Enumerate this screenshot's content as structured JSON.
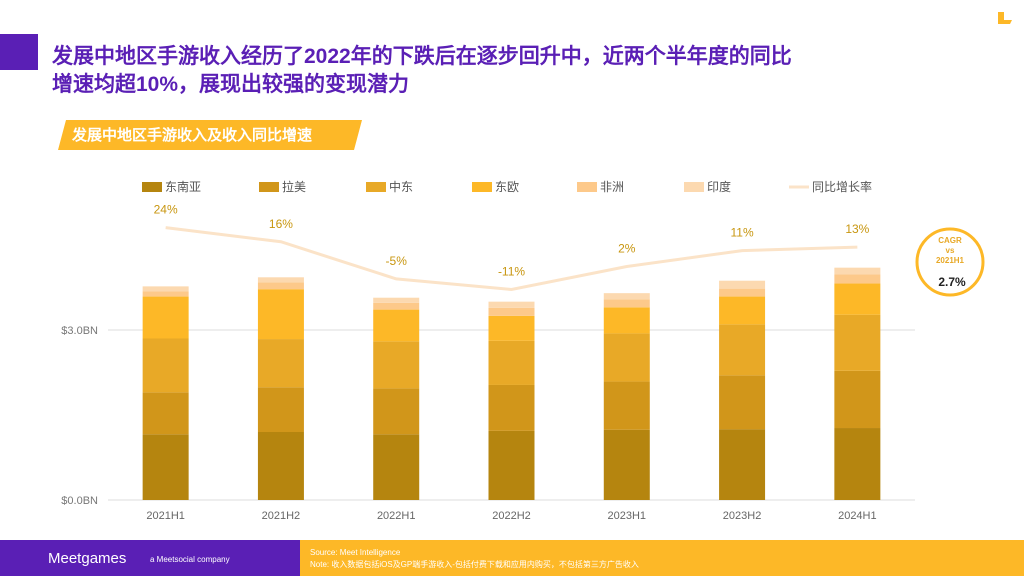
{
  "header": {
    "title": [
      "发展中地区手游收入经历了2022年的下跌后在逐步回升中，近两个半年度的同比",
      "增速均超10%，展现出较强的变现潜力"
    ],
    "subtitle": "发展中地区手游收入及收入同比增速"
  },
  "chart_data": {
    "type": "bar",
    "stacked": true,
    "categories": [
      "2021H1",
      "2021H2",
      "2022H1",
      "2022H2",
      "2023H1",
      "2023H2",
      "2024H1"
    ],
    "series": [
      {
        "name": "东南亚",
        "color": "#b5850f",
        "values": [
          1.16,
          1.2,
          1.16,
          1.22,
          1.24,
          1.25,
          1.27
        ]
      },
      {
        "name": "拉美",
        "color": "#d1961a",
        "values": [
          0.74,
          0.79,
          0.81,
          0.81,
          0.85,
          0.95,
          1.01
        ]
      },
      {
        "name": "中东",
        "color": "#e8a927",
        "values": [
          0.95,
          0.85,
          0.83,
          0.78,
          0.85,
          0.9,
          0.99
        ]
      },
      {
        "name": "东欧",
        "color": "#fdb827",
        "values": [
          0.74,
          0.88,
          0.56,
          0.44,
          0.46,
          0.49,
          0.55
        ]
      },
      {
        "name": "非洲",
        "color": "#fdc98a",
        "values": [
          0.09,
          0.12,
          0.12,
          0.14,
          0.14,
          0.14,
          0.16
        ]
      },
      {
        "name": "印度",
        "color": "#fcd9b0",
        "values": [
          0.09,
          0.09,
          0.09,
          0.11,
          0.11,
          0.14,
          0.12
        ]
      },
      {
        "name": "同比增长率",
        "type": "line",
        "axis": "y2",
        "color": "#fbe3c8",
        "values": [
          24,
          16,
          -5,
          -11,
          2,
          11,
          13
        ],
        "value_labels": [
          "24%",
          "16%",
          "-5%",
          "-11%",
          "2%",
          "11%",
          "13%"
        ]
      }
    ],
    "ylim": [
      0,
      5.4
    ],
    "yticks": [
      {
        "value": 0,
        "label": "$0.0BN"
      },
      {
        "value": 3,
        "label": "$3.0BN"
      }
    ],
    "y2lim": [
      -130,
      43
    ],
    "grid": true,
    "legend": "top"
  },
  "badge": {
    "label": [
      "CAGR",
      "vs",
      "2021H1"
    ],
    "value": "2.7%"
  },
  "footer": {
    "brand": "Meetgames",
    "tagline": "a Meetsocial company",
    "source": "Source: Meet Intelligence",
    "note": "Note: 收入数据包括iOS及GP端手游收入-包括付费下载和应用内购买，不包括第三方广告收入"
  }
}
